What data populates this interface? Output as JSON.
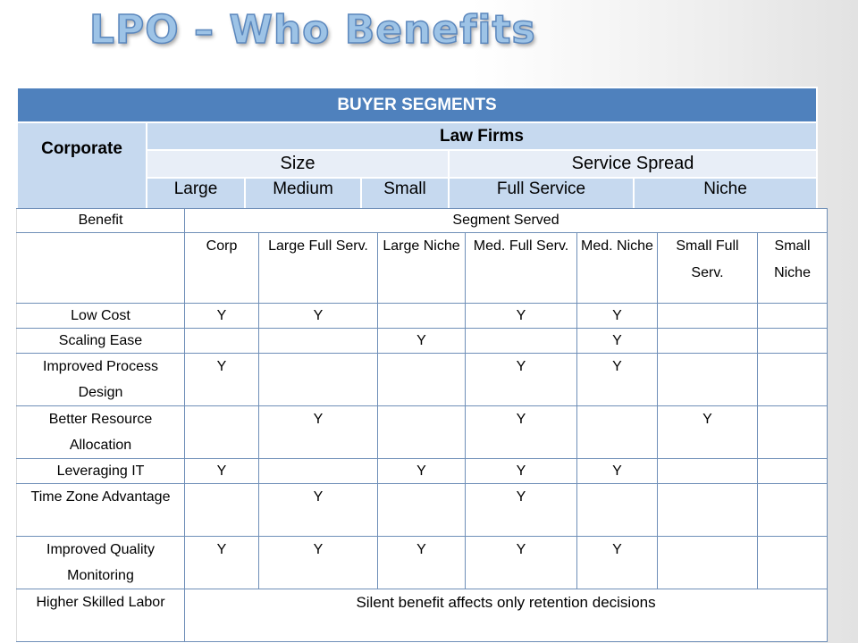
{
  "slide": {
    "title": "LPO – Who Benefits"
  },
  "segments": {
    "banner": "BUYER  SEGMENTS",
    "corporate": "Corporate",
    "law_firms": "Law Firms",
    "size": "Size",
    "service_spread": "Service Spread",
    "large": "Large",
    "medium": "Medium",
    "small": "Small",
    "full_service": "Full Service",
    "niche": "Niche"
  },
  "benefits": {
    "benefit_header": "Benefit",
    "segment_header": "Segment Served",
    "columns": [
      "Corp",
      "Large Full Serv.",
      "Large Niche",
      "Med. Full Serv.",
      "Med. Niche",
      "Small Full Serv.",
      "Small Niche"
    ],
    "rows": [
      {
        "label": "Low Cost",
        "cells": [
          "Y",
          "Y",
          "",
          "Y",
          "Y",
          "",
          ""
        ]
      },
      {
        "label": "Scaling Ease",
        "cells": [
          "",
          "",
          "Y",
          "",
          "Y",
          "",
          ""
        ]
      },
      {
        "label": "Improved Process Design",
        "cells": [
          "Y",
          "",
          "",
          "Y",
          "Y",
          "",
          ""
        ]
      },
      {
        "label": "Better Resource Allocation",
        "cells": [
          "",
          "Y",
          "",
          "Y",
          "",
          "Y",
          ""
        ]
      },
      {
        "label": "Leveraging IT",
        "cells": [
          "Y",
          "",
          "Y",
          "Y",
          "Y",
          "",
          ""
        ]
      },
      {
        "label": "Time Zone Advantage",
        "cells": [
          "",
          "Y",
          "",
          "Y",
          "",
          "",
          ""
        ]
      },
      {
        "label": "Improved Quality Monitoring",
        "cells": [
          "Y",
          "Y",
          "Y",
          "Y",
          "Y",
          "",
          ""
        ]
      }
    ],
    "last_row": {
      "label": "Higher Skilled Labor",
      "note": "Silent benefit affects only retention decisions"
    }
  }
}
